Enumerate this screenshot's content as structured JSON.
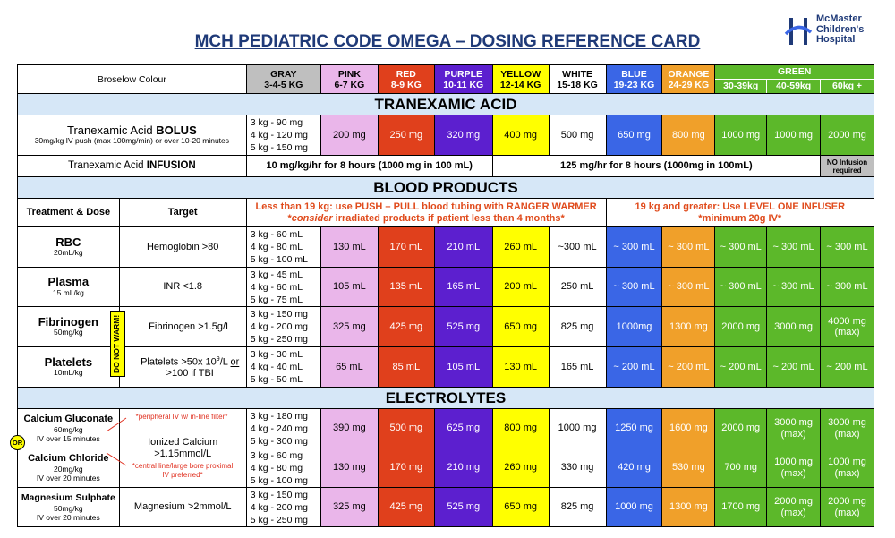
{
  "title": "MCH PEDIATRIC CODE OMEGA – DOSING REFERENCE CARD",
  "logo": {
    "line1": "McMaster",
    "line2": "Children's",
    "line3": "Hospital"
  },
  "header": {
    "broselow": "Broselow Colour",
    "cols": [
      {
        "name": "GRAY",
        "wt": "3-4-5 KG"
      },
      {
        "name": "PINK",
        "wt": "6-7 KG"
      },
      {
        "name": "RED",
        "wt": "8-9 KG"
      },
      {
        "name": "PURPLE",
        "wt": "10-11 KG"
      },
      {
        "name": "YELLOW",
        "wt": "12-14 KG"
      },
      {
        "name": "WHITE",
        "wt": "15-18 KG"
      },
      {
        "name": "BLUE",
        "wt": "19-23 KG"
      },
      {
        "name": "ORANGE",
        "wt": "24-29 KG"
      }
    ],
    "green": "GREEN",
    "green_wts": [
      "30-39kg",
      "40-59kg",
      "60kg +"
    ]
  },
  "txa": {
    "section": "TRANEXAMIC ACID",
    "bolus_label": "Tranexamic Acid ",
    "bolus_bold": "BOLUS",
    "bolus_sub": "30mg/kg IV push (max 100mg/min) or over 10-20 minutes",
    "gray": [
      "3 kg - 90 mg",
      "4 kg - 120 mg",
      "5 kg - 150 mg"
    ],
    "values": [
      "200 mg",
      "250 mg",
      "320 mg",
      "400 mg",
      "500 mg",
      "650 mg",
      "800 mg",
      "1000 mg",
      "1000 mg",
      "2000 mg"
    ],
    "inf_label": "Tranexamic Acid ",
    "inf_bold": "INFUSION",
    "inf_low": "10 mg/kg/hr for 8 hours (1000 mg in 100 mL)",
    "inf_high": "125 mg/hr for 8 hours (1000mg in 100mL)",
    "no_inf": "NO Infusion required"
  },
  "blood": {
    "section": "BLOOD PRODUCTS",
    "th_treat": "Treatment & Dose",
    "th_target": "Target",
    "push_line1": "Less than 19 kg: use PUSH – PULL blood tubing with RANGER WARMER",
    "push_line2_em": "consider",
    "push_line2": " irradiated products if patient less than 4 months*",
    "push_star": "*",
    "level_line1": "19 kg and greater: Use LEVEL ONE INFUSER",
    "level_line2": "*minimum 20g IV*",
    "do_not_warm": "DO NOT WARM!",
    "rows": [
      {
        "name": "RBC",
        "dose": "20mL/kg",
        "target": "Hemoglobin >80",
        "gray": [
          "3 kg - 60 mL",
          "4 kg - 80 mL",
          "5 kg - 100 mL"
        ],
        "values": [
          "130 mL",
          "170 mL",
          "210 mL",
          "260 mL",
          "~300 mL",
          "~ 300 mL",
          "~ 300 mL",
          "~ 300 mL",
          "~ 300 mL",
          "~ 300 mL"
        ]
      },
      {
        "name": "Plasma",
        "dose": "15 mL/kg",
        "target": "INR <1.8",
        "gray": [
          "3 kg - 45 mL",
          "4 kg - 60 mL",
          "5 kg - 75 mL"
        ],
        "values": [
          "105 mL",
          "135 mL",
          "165 mL",
          "200 mL",
          "250 mL",
          "~ 300 mL",
          "~ 300 mL",
          "~ 300 mL",
          "~ 300 mL",
          "~ 300 mL"
        ]
      },
      {
        "name": "Fibrinogen",
        "dose": "50mg/kg",
        "target": "Fibrinogen >1.5g/L",
        "gray": [
          "3 kg - 150 mg",
          "4 kg - 200 mg",
          "5 kg - 250 mg"
        ],
        "values": [
          "325 mg",
          "425 mg",
          "525 mg",
          "650 mg",
          "825 mg",
          "1000mg",
          "1300 mg",
          "2000 mg",
          "3000 mg",
          "4000 mg (max)"
        ]
      },
      {
        "name": "Platelets",
        "dose": "10mL/kg",
        "target_a": "Platelets  >50x 10",
        "target_sup": "9",
        "target_b": "/L ",
        "target_or": "or",
        "target_c": " >100 if TBI",
        "gray": [
          "3 kg - 30 mL",
          "4 kg - 40 mL",
          "5 kg - 50 mL"
        ],
        "values": [
          "65 mL",
          "85 mL",
          "105 mL",
          "130 mL",
          "165 mL",
          "~ 200 mL",
          "~ 200 mL",
          "~ 200 mL",
          "~ 200 mL",
          "~ 200 mL"
        ]
      }
    ]
  },
  "elec": {
    "section": "ELECTROLYTES",
    "or": "OR",
    "note_periph": "*peripheral IV w/ in-line filter*",
    "note_central": "*central line/large bore proximal IV preferred*",
    "ca_target": "Ionized Calcium >1.15mmol/L",
    "rows": [
      {
        "name": "Calcium Gluconate",
        "dose": "60mg/kg",
        "dose2": "IV over 15 minutes",
        "gray": [
          "3 kg - 180 mg",
          "4 kg - 240 mg",
          "5 kg - 300 mg"
        ],
        "values": [
          "390 mg",
          "500 mg",
          "625 mg",
          "800 mg",
          "1000 mg",
          "1250 mg",
          "1600 mg",
          "2000 mg",
          "3000 mg (max)",
          "3000 mg (max)"
        ]
      },
      {
        "name": "Calcium Chloride",
        "dose": "20mg/kg",
        "dose2": "IV over 20 minutes",
        "gray": [
          "3 kg - 60 mg",
          "4 kg - 80 mg",
          "5 kg - 100 mg"
        ],
        "values": [
          "130 mg",
          "170 mg",
          "210 mg",
          "260 mg",
          "330 mg",
          "420 mg",
          "530 mg",
          "700 mg",
          "1000 mg (max)",
          "1000 mg (max)"
        ]
      },
      {
        "name": "Magnesium Sulphate",
        "dose": "50mg/kg",
        "dose2": "IV over 20 minutes",
        "target": "Magnesium  >2mmol/L",
        "gray": [
          "3 kg - 150 mg",
          "4 kg - 200 mg",
          "5 kg - 250 mg"
        ],
        "values": [
          "325 mg",
          "425 mg",
          "525 mg",
          "650 mg",
          "825 mg",
          "1000 mg",
          "1300 mg",
          "1700 mg",
          "2000 mg (max)",
          "2000 mg (max)"
        ]
      }
    ]
  }
}
